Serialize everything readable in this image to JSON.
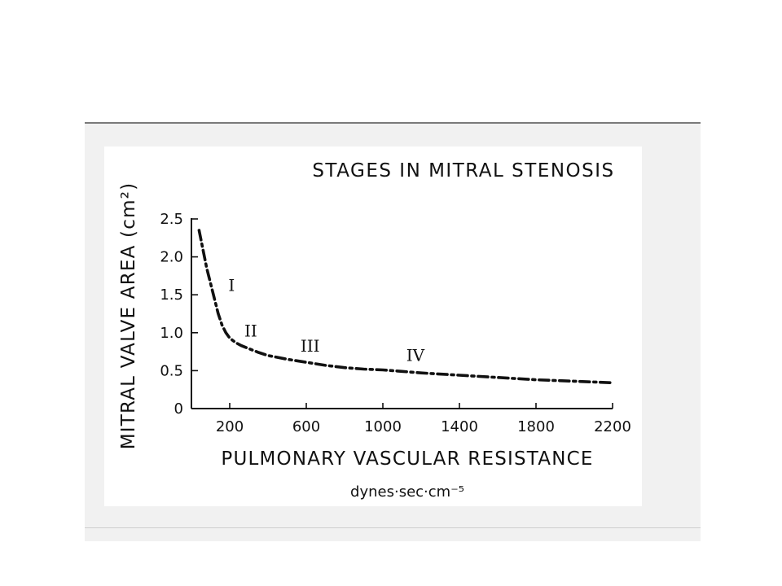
{
  "colors": {
    "panel": "#f1f1f1",
    "ink": "#111111",
    "card": "#ffffff"
  },
  "chart_data": {
    "type": "line",
    "title": "STAGES IN MITRAL STENOSIS",
    "xlabel": "PULMONARY VASCULAR RESISTANCE",
    "xunit": "dynes·sec·cm⁻⁵",
    "ylabel": "MITRAL VALVE AREA (cm²)",
    "xlim": [
      0,
      2200
    ],
    "ylim": [
      0,
      2.5
    ],
    "xticks": [
      200,
      600,
      1000,
      1400,
      1800,
      2200
    ],
    "xtick_labels": [
      "200",
      "600",
      "1000",
      "1400",
      "1800",
      "2200"
    ],
    "yticks": [
      0,
      0.5,
      1.0,
      1.5,
      2.0,
      2.5
    ],
    "ytick_labels": [
      "0",
      "0.5",
      "1.0",
      "1.5",
      "2.0",
      "2.5"
    ],
    "grid": false,
    "series": [
      {
        "x": [
          40,
          60,
          80,
          100,
          120,
          140,
          160,
          180,
          200,
          230,
          260,
          300,
          350,
          400,
          500,
          600,
          700,
          800,
          900,
          1000,
          1100,
          1200,
          1400,
          1600,
          1800,
          2000,
          2200
        ],
        "y": [
          2.35,
          2.1,
          1.85,
          1.65,
          1.45,
          1.25,
          1.1,
          1.0,
          0.93,
          0.87,
          0.83,
          0.79,
          0.74,
          0.7,
          0.65,
          0.61,
          0.57,
          0.54,
          0.52,
          0.51,
          0.49,
          0.47,
          0.44,
          0.41,
          0.38,
          0.36,
          0.34
        ]
      }
    ],
    "annotations": [
      {
        "text": "I",
        "x": 210,
        "y": 1.55
      },
      {
        "text": "II",
        "x": 310,
        "y": 0.95
      },
      {
        "text": "III",
        "x": 620,
        "y": 0.75
      },
      {
        "text": "IV",
        "x": 1170,
        "y": 0.63
      }
    ]
  }
}
